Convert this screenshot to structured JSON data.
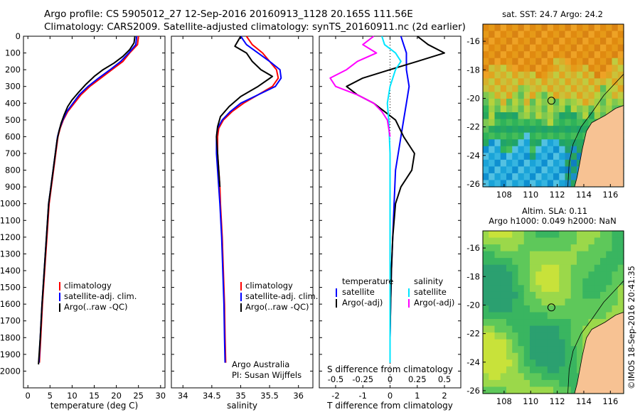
{
  "header": {
    "line1": "Argo profile: CS 5905012_27 12-Sep-2016 20160913_1128 20.165S 111.56E",
    "line2": "Climatology: CARS2009. Satellite-adjusted climatology: synTS_20160911.nc (2d earlier)"
  },
  "depth_axis": {
    "ticks": [
      0,
      100,
      200,
      300,
      400,
      500,
      600,
      700,
      800,
      900,
      1000,
      1100,
      1200,
      1300,
      1400,
      1500,
      1600,
      1700,
      1800,
      1900,
      2000
    ],
    "ylim": [
      0,
      2100
    ],
    "reversed": true
  },
  "colors": {
    "climatology": "#ff0000",
    "satellite": "#0000ff",
    "argo": "#000000",
    "sat_salinity": "#00e5ff",
    "argo_salinity": "#ff00ff"
  },
  "legend_profiles": [
    "climatology",
    "satellite-adj. clim.",
    "Argo(..raw -QC)"
  ],
  "legend_diff": {
    "temperature_title": "temperature",
    "salinity_title": "salinity",
    "satellite": "satellite",
    "argo": "Argo(-adj)"
  },
  "credit": {
    "line1": "Argo Australia",
    "line2": "PI: Susan Wijffels"
  },
  "watermark": "©IMOS 18-Sep-2016 20:41:35",
  "maps": {
    "sst": {
      "title": "sat. SST: 24.7  Argo: 24.2",
      "x_ticks": [
        "108",
        "110",
        "112",
        "114",
        "116"
      ],
      "y_ticks": [
        "-16",
        "-18",
        "-20",
        "-22",
        "-24",
        "-26"
      ],
      "xlim": [
        106.4,
        117.0
      ],
      "ylim": [
        -26.2,
        -14.8
      ],
      "float_lon": 111.56,
      "float_lat": -20.165
    },
    "sla": {
      "title1": "Altim. SLA: 0.11",
      "title2": "Argo h1000: 0.049  h2000: NaN",
      "x_ticks": [
        "108",
        "110",
        "112",
        "114",
        "116"
      ],
      "y_ticks": [
        "-16",
        "-18",
        "-20",
        "-22",
        "-24",
        "-26"
      ],
      "xlim": [
        106.4,
        117.0
      ],
      "ylim": [
        -26.2,
        -14.8
      ],
      "float_lon": 111.56,
      "float_lat": -20.165
    }
  },
  "chart_data": [
    {
      "type": "line",
      "xlabel": "temperature (deg C)",
      "xlim": [
        -1,
        31
      ],
      "x_ticks": [
        0,
        5,
        10,
        15,
        20,
        25,
        30
      ],
      "series": [
        {
          "name": "climatology",
          "points": [
            [
              25.0,
              0
            ],
            [
              24.8,
              50
            ],
            [
              23.0,
              100
            ],
            [
              21.5,
              150
            ],
            [
              19.0,
              200
            ],
            [
              16.5,
              250
            ],
            [
              14.0,
              300
            ],
            [
              12.0,
              350
            ],
            [
              10.5,
              400
            ],
            [
              9.0,
              450
            ],
            [
              8.0,
              500
            ],
            [
              7.3,
              550
            ],
            [
              6.8,
              600
            ],
            [
              6.3,
              700
            ],
            [
              5.8,
              800
            ],
            [
              5.3,
              900
            ],
            [
              4.8,
              1000
            ],
            [
              4.3,
              1200
            ],
            [
              3.8,
              1400
            ],
            [
              3.3,
              1600
            ],
            [
              2.9,
              1800
            ],
            [
              2.6,
              1950
            ]
          ]
        },
        {
          "name": "satellite-adj. clim.",
          "points": [
            [
              24.6,
              0
            ],
            [
              24.4,
              50
            ],
            [
              22.8,
              100
            ],
            [
              21.0,
              150
            ],
            [
              18.6,
              200
            ],
            [
              16.0,
              250
            ],
            [
              13.6,
              300
            ],
            [
              11.6,
              350
            ],
            [
              10.2,
              400
            ],
            [
              8.8,
              450
            ],
            [
              7.9,
              500
            ],
            [
              7.2,
              550
            ],
            [
              6.7,
              600
            ],
            [
              6.2,
              700
            ],
            [
              5.7,
              800
            ],
            [
              5.2,
              900
            ],
            [
              4.7,
              1000
            ],
            [
              4.2,
              1200
            ],
            [
              3.7,
              1400
            ],
            [
              3.2,
              1600
            ],
            [
              2.8,
              1800
            ],
            [
              2.5,
              1950
            ]
          ]
        },
        {
          "name": "Argo(..raw -QC)",
          "points": [
            [
              24.2,
              0
            ],
            [
              24.0,
              40
            ],
            [
              23.0,
              80
            ],
            [
              21.5,
              120
            ],
            [
              19.5,
              160
            ],
            [
              17.0,
              200
            ],
            [
              15.0,
              240
            ],
            [
              13.0,
              290
            ],
            [
              11.3,
              340
            ],
            [
              10.0,
              380
            ],
            [
              9.0,
              420
            ],
            [
              8.2,
              470
            ],
            [
              7.5,
              520
            ],
            [
              7.0,
              570
            ],
            [
              6.6,
              620
            ],
            [
              6.2,
              700
            ],
            [
              5.7,
              800
            ],
            [
              5.2,
              900
            ],
            [
              4.7,
              1000
            ],
            [
              4.2,
              1200
            ],
            [
              3.7,
              1400
            ],
            [
              3.2,
              1600
            ],
            [
              2.8,
              1800
            ],
            [
              2.4,
              1960
            ]
          ]
        }
      ]
    },
    {
      "type": "line",
      "xlabel": "salinity",
      "xlim": [
        33.8,
        36.25
      ],
      "x_ticks": [
        34,
        34.5,
        35,
        35.5,
        36
      ],
      "series": [
        {
          "name": "climatology",
          "points": [
            [
              35.1,
              0
            ],
            [
              35.2,
              50
            ],
            [
              35.38,
              100
            ],
            [
              35.5,
              150
            ],
            [
              35.62,
              200
            ],
            [
              35.65,
              250
            ],
            [
              35.55,
              300
            ],
            [
              35.3,
              350
            ],
            [
              35.05,
              400
            ],
            [
              34.85,
              450
            ],
            [
              34.7,
              500
            ],
            [
              34.62,
              550
            ],
            [
              34.6,
              600
            ],
            [
              34.6,
              700
            ],
            [
              34.62,
              800
            ],
            [
              34.64,
              900
            ],
            [
              34.65,
              1000
            ],
            [
              34.68,
              1200
            ],
            [
              34.7,
              1400
            ],
            [
              34.72,
              1600
            ],
            [
              34.73,
              1800
            ],
            [
              34.74,
              1950
            ]
          ]
        },
        {
          "name": "satellite-adj. clim.",
          "points": [
            [
              35.0,
              0
            ],
            [
              35.1,
              50
            ],
            [
              35.3,
              100
            ],
            [
              35.5,
              150
            ],
            [
              35.68,
              200
            ],
            [
              35.7,
              250
            ],
            [
              35.6,
              300
            ],
            [
              35.3,
              350
            ],
            [
              35.0,
              400
            ],
            [
              34.82,
              450
            ],
            [
              34.68,
              500
            ],
            [
              34.6,
              550
            ],
            [
              34.58,
              600
            ],
            [
              34.58,
              700
            ],
            [
              34.6,
              800
            ],
            [
              34.62,
              900
            ],
            [
              34.64,
              1000
            ],
            [
              34.67,
              1200
            ],
            [
              34.69,
              1400
            ],
            [
              34.71,
              1600
            ],
            [
              34.72,
              1800
            ],
            [
              34.73,
              1950
            ]
          ]
        },
        {
          "name": "Argo(..raw -QC)",
          "points": [
            [
              35.0,
              0
            ],
            [
              34.9,
              60
            ],
            [
              35.1,
              100
            ],
            [
              35.2,
              150
            ],
            [
              35.35,
              200
            ],
            [
              35.55,
              240
            ],
            [
              35.3,
              300
            ],
            [
              35.0,
              360
            ],
            [
              34.8,
              420
            ],
            [
              34.65,
              480
            ],
            [
              34.6,
              540
            ],
            [
              34.58,
              600
            ],
            [
              34.6,
              700
            ],
            [
              34.62,
              800
            ],
            [
              34.64,
              900
            ]
          ]
        }
      ]
    },
    {
      "type": "line",
      "xlabel": "T difference from climatology",
      "top_label": "S difference from climatology",
      "xlim": [
        -2.6,
        2.6
      ],
      "x_ticks": [
        -2,
        -1,
        0,
        1,
        2
      ],
      "top_ticks": [
        "-0.5",
        "-0.25",
        "0",
        "0.25",
        "0.5"
      ],
      "series": [
        {
          "name": "satellite (temperature)",
          "points": [
            [
              0.4,
              0
            ],
            [
              0.5,
              50
            ],
            [
              0.6,
              100
            ],
            [
              0.6,
              150
            ],
            [
              0.6,
              200
            ],
            [
              0.65,
              250
            ],
            [
              0.7,
              300
            ],
            [
              0.65,
              350
            ],
            [
              0.6,
              400
            ],
            [
              0.5,
              500
            ],
            [
              0.4,
              600
            ],
            [
              0.3,
              700
            ],
            [
              0.2,
              800
            ],
            [
              0.15,
              1000
            ],
            [
              0.1,
              1200
            ],
            [
              0.05,
              1400
            ],
            [
              0.02,
              1600
            ],
            [
              0.0,
              1800
            ],
            [
              0.0,
              1950
            ]
          ]
        },
        {
          "name": "Argo(-adj) (temperature)",
          "points": [
            [
              1.0,
              0
            ],
            [
              1.4,
              50
            ],
            [
              2.0,
              100
            ],
            [
              1.0,
              150
            ],
            [
              0.0,
              200
            ],
            [
              -1.0,
              250
            ],
            [
              -1.6,
              300
            ],
            [
              -1.2,
              350
            ],
            [
              -0.6,
              400
            ],
            [
              -0.2,
              450
            ],
            [
              0.2,
              500
            ],
            [
              0.5,
              600
            ],
            [
              0.9,
              700
            ],
            [
              0.8,
              800
            ],
            [
              0.4,
              900
            ],
            [
              0.2,
              1000
            ],
            [
              0.1,
              1200
            ],
            [
              0.05,
              1400
            ],
            [
              0.02,
              1600
            ],
            [
              0.0,
              1800
            ],
            [
              0.0,
              1950
            ]
          ]
        },
        {
          "name": "satellite (salinity)",
          "points": [
            [
              -0.3,
              0
            ],
            [
              -0.2,
              50
            ],
            [
              0.2,
              100
            ],
            [
              0.4,
              150
            ],
            [
              0.2,
              200
            ],
            [
              0.0,
              300
            ],
            [
              -0.1,
              400
            ],
            [
              -0.05,
              500
            ],
            [
              0.0,
              700
            ],
            [
              0.0,
              1000
            ],
            [
              0.0,
              1500
            ],
            [
              0.0,
              1950
            ]
          ]
        },
        {
          "name": "Argo(-adj) (salinity)",
          "points": [
            [
              -0.6,
              0
            ],
            [
              -1.0,
              50
            ],
            [
              -0.5,
              100
            ],
            [
              -1.2,
              150
            ],
            [
              -1.6,
              200
            ],
            [
              -2.2,
              250
            ],
            [
              -2.0,
              300
            ],
            [
              -1.2,
              350
            ],
            [
              -0.6,
              400
            ],
            [
              -0.3,
              450
            ],
            [
              -0.1,
              500
            ],
            [
              0.0,
              600
            ]
          ]
        }
      ]
    }
  ]
}
